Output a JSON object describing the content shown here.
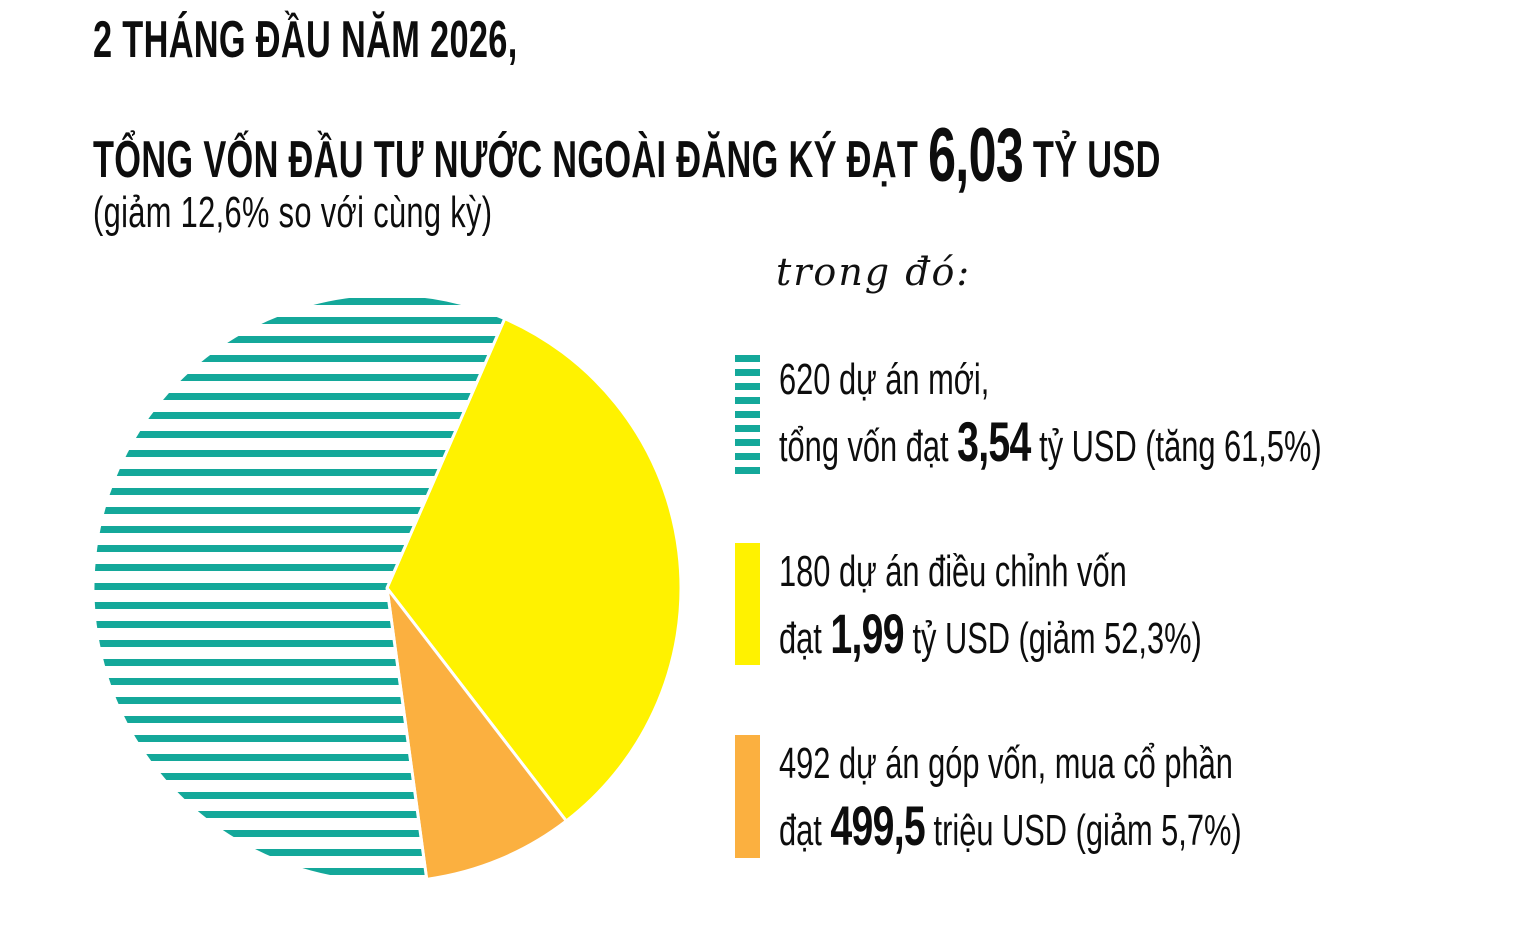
{
  "header": {
    "line1": "2 THÁNG ĐẦU NĂM 2026,",
    "line2_prefix": "TỔNG VỐN ĐẦU TƯ NƯỚC NGOÀI ĐĂNG KÝ ĐẠT",
    "line2_value": "6,03",
    "line2_suffix": "TỶ USD",
    "line3": "(giảm 12,6% so với cùng kỳ)"
  },
  "legend_intro": "trong đó:",
  "legend": [
    {
      "line1": "620 dự án mới,",
      "line2_prefix": "tổng vốn đạt",
      "value": "3,54",
      "line2_suffix": "tỷ USD (tăng 61,5%)",
      "swatch": "striped",
      "color": "#14A89A"
    },
    {
      "line1": "180 dự án điều chỉnh vốn",
      "line2_prefix": "đạt",
      "value": "1,99",
      "line2_suffix": "tỷ USD (giảm 52,3%)",
      "swatch": "solid",
      "color": "#FFF200"
    },
    {
      "line1": "492 dự án góp vốn, mua cổ phần",
      "line2_prefix": "đạt",
      "value": "499,5",
      "line2_suffix": "triệu USD (giảm 5,7%)",
      "swatch": "solid",
      "color": "#FBB040"
    }
  ],
  "chart_data": {
    "type": "pie",
    "title": "2 tháng đầu năm 2026, tổng vốn đầu tư nước ngoài đăng ký đạt 6,03 tỷ USD (giảm 12,6% so với cùng kỳ)",
    "unit": "tỷ USD",
    "total": 6.03,
    "total_change_pct": -12.6,
    "start_angle_deg": 23.6,
    "center": [
      387,
      588
    ],
    "radius": 294,
    "stripe": {
      "period": 19,
      "thickness": 7
    },
    "slices": [
      {
        "label": "Vốn đăng ký điều chỉnh (180 dự án)",
        "value": 1.99,
        "change_pct": -52.3,
        "color": "#FFF200",
        "pattern": "solid",
        "projects": 180
      },
      {
        "label": "Góp vốn, mua cổ phần (492 dự án)",
        "value": 0.4995,
        "change_pct": -5.7,
        "color": "#FBB040",
        "pattern": "solid",
        "projects": 492
      },
      {
        "label": "Dự án mới (620 dự án)",
        "value": 3.54,
        "change_pct": 61.5,
        "color": "#14A89A",
        "pattern": "horizontal-stripes",
        "projects": 620
      }
    ]
  }
}
